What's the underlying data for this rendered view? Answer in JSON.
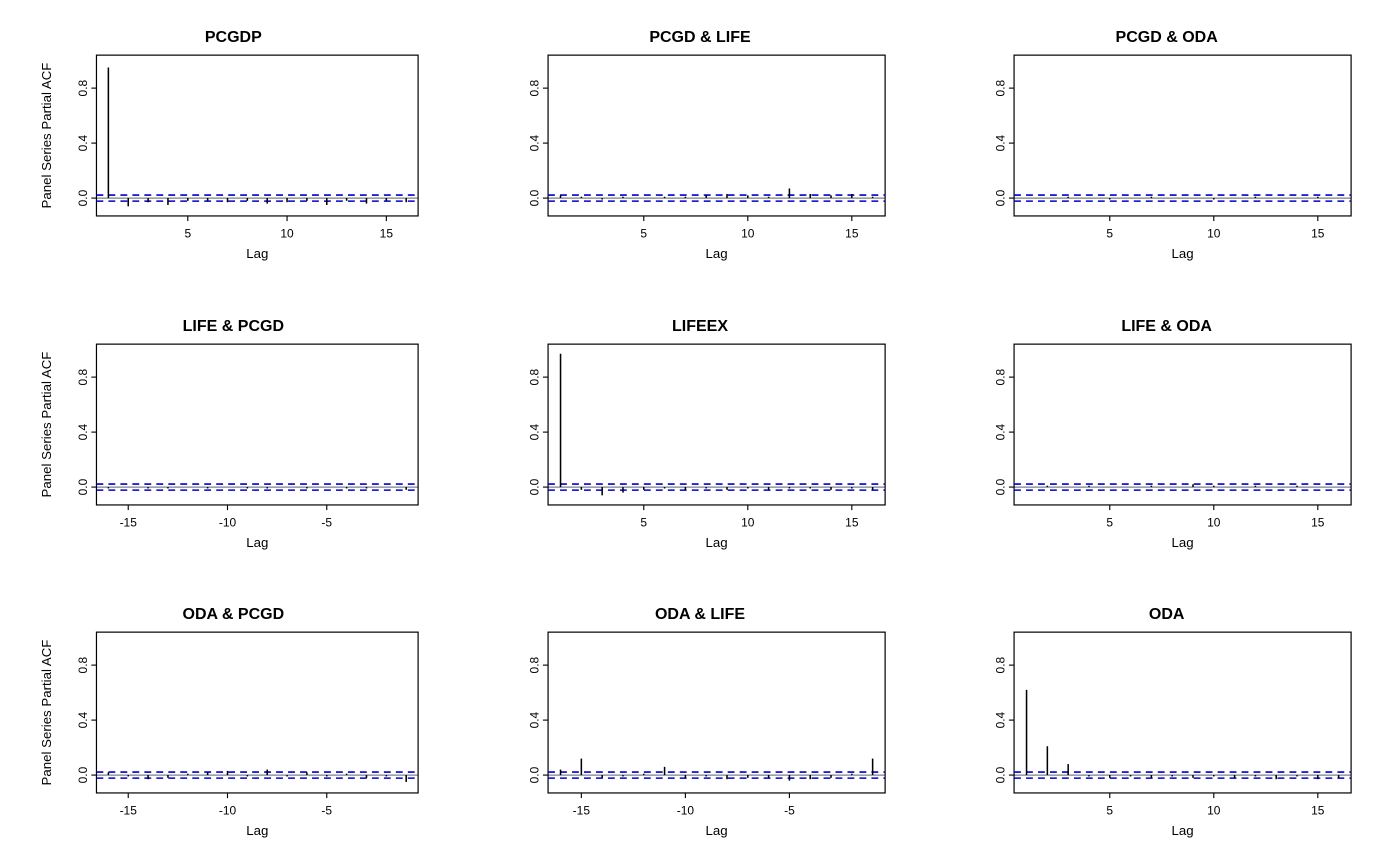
{
  "figure": {
    "ylab": "Panel Series Partial ACF",
    "xlab": "Lag",
    "colors": {
      "spike": "#000000",
      "conf": "#0000CD",
      "box": "#000000",
      "bg": "#ffffff",
      "zero": "#000000"
    }
  },
  "chart_data": [
    {
      "type": "bar",
      "title": "PCGDP",
      "xlabel": "Lag",
      "ylabel": "Panel Series Partial ACF",
      "show_ylab": true,
      "grid": false,
      "legend": "none",
      "xlim": [
        0.4,
        16.6
      ],
      "ylim": [
        -0.13,
        1.04
      ],
      "x_ticks": [
        5,
        10,
        15
      ],
      "y_ticks": [
        0.0,
        0.4,
        0.8
      ],
      "conf": 0.022,
      "lags": [
        1,
        2,
        3,
        4,
        5,
        6,
        7,
        8,
        9,
        10,
        11,
        12,
        13,
        14,
        15,
        16
      ],
      "values": [
        0.95,
        -0.06,
        -0.03,
        -0.05,
        -0.02,
        -0.02,
        -0.03,
        -0.02,
        -0.04,
        -0.03,
        -0.02,
        -0.05,
        -0.02,
        -0.04,
        -0.02,
        -0.03
      ]
    },
    {
      "type": "bar",
      "title": "PCGD & LIFE",
      "xlabel": "Lag",
      "ylabel": "Panel Series Partial ACF",
      "show_ylab": false,
      "grid": false,
      "legend": "none",
      "xlim": [
        0.4,
        16.6
      ],
      "ylim": [
        -0.13,
        1.04
      ],
      "x_ticks": [
        5,
        10,
        15
      ],
      "y_ticks": [
        0.0,
        0.4,
        0.8
      ],
      "conf": 0.022,
      "lags": [
        1,
        2,
        3,
        4,
        5,
        6,
        7,
        8,
        9,
        10,
        11,
        12,
        13,
        14,
        15,
        16
      ],
      "values": [
        0.02,
        0.01,
        -0.01,
        0.01,
        0.0,
        0.01,
        0.01,
        0.02,
        0.03,
        0.02,
        0.01,
        0.07,
        0.03,
        0.02,
        0.03,
        0.01
      ]
    },
    {
      "type": "bar",
      "title": "PCGD & ODA",
      "xlabel": "Lag",
      "ylabel": "Panel Series Partial ACF",
      "show_ylab": false,
      "grid": false,
      "legend": "none",
      "xlim": [
        0.4,
        16.6
      ],
      "ylim": [
        -0.13,
        1.04
      ],
      "x_ticks": [
        5,
        10,
        15
      ],
      "y_ticks": [
        0.0,
        0.4,
        0.8
      ],
      "conf": 0.022,
      "lags": [
        1,
        2,
        3,
        4,
        5,
        6,
        7,
        8,
        9,
        10,
        11,
        12,
        13,
        14,
        15,
        16
      ],
      "values": [
        0.0,
        0.0,
        0.01,
        0.0,
        -0.01,
        0.0,
        0.01,
        0.0,
        0.0,
        -0.01,
        0.0,
        0.01,
        0.0,
        0.0,
        0.01,
        0.0
      ]
    },
    {
      "type": "bar",
      "title": "LIFE & PCGD",
      "xlabel": "Lag",
      "ylabel": "Panel Series Partial ACF",
      "show_ylab": true,
      "grid": false,
      "legend": "none",
      "xlim": [
        -16.6,
        -0.4
      ],
      "ylim": [
        -0.13,
        1.04
      ],
      "x_ticks": [
        -15,
        -10,
        -5
      ],
      "y_ticks": [
        0.0,
        0.4,
        0.8
      ],
      "conf": 0.022,
      "lags": [
        -16,
        -15,
        -14,
        -13,
        -12,
        -11,
        -10,
        -9,
        -8,
        -7,
        -6,
        -5,
        -4,
        -3,
        -2,
        -1
      ],
      "values": [
        -0.01,
        0.0,
        -0.01,
        -0.01,
        0.0,
        -0.01,
        0.0,
        -0.01,
        -0.01,
        0.0,
        -0.01,
        0.0,
        -0.01,
        -0.01,
        0.0,
        -0.02
      ]
    },
    {
      "type": "bar",
      "title": "LIFEEX",
      "xlabel": "Lag",
      "ylabel": "Panel Series Partial ACF",
      "show_ylab": false,
      "grid": false,
      "legend": "none",
      "xlim": [
        0.4,
        16.6
      ],
      "ylim": [
        -0.13,
        1.04
      ],
      "x_ticks": [
        5,
        10,
        15
      ],
      "y_ticks": [
        0.0,
        0.4,
        0.8
      ],
      "conf": 0.022,
      "lags": [
        1,
        2,
        3,
        4,
        5,
        6,
        7,
        8,
        9,
        10,
        11,
        12,
        13,
        14,
        15,
        16
      ],
      "values": [
        0.97,
        -0.02,
        -0.06,
        -0.04,
        -0.02,
        -0.01,
        -0.02,
        -0.01,
        -0.02,
        -0.01,
        -0.02,
        -0.01,
        -0.01,
        -0.02,
        -0.01,
        -0.02
      ]
    },
    {
      "type": "bar",
      "title": "LIFE & ODA",
      "xlabel": "Lag",
      "ylabel": "Panel Series Partial ACF",
      "show_ylab": false,
      "grid": false,
      "legend": "none",
      "xlim": [
        0.4,
        16.6
      ],
      "ylim": [
        -0.13,
        1.04
      ],
      "x_ticks": [
        5,
        10,
        15
      ],
      "y_ticks": [
        0.0,
        0.4,
        0.8
      ],
      "conf": 0.022,
      "lags": [
        1,
        2,
        3,
        4,
        5,
        6,
        7,
        8,
        9,
        10,
        11,
        12,
        13,
        14,
        15,
        16
      ],
      "values": [
        0.0,
        0.01,
        0.0,
        0.01,
        0.0,
        0.0,
        0.01,
        0.0,
        0.02,
        0.01,
        0.0,
        0.01,
        0.0,
        0.01,
        0.0,
        0.0
      ]
    },
    {
      "type": "bar",
      "title": "ODA & PCGD",
      "xlabel": "Lag",
      "ylabel": "Panel Series Partial ACF",
      "show_ylab": true,
      "grid": false,
      "legend": "none",
      "xlim": [
        -16.6,
        -0.4
      ],
      "ylim": [
        -0.13,
        1.04
      ],
      "x_ticks": [
        -15,
        -10,
        -5
      ],
      "y_ticks": [
        0.0,
        0.4,
        0.8
      ],
      "conf": 0.022,
      "lags": [
        -16,
        -15,
        -14,
        -13,
        -12,
        -11,
        -10,
        -9,
        -8,
        -7,
        -6,
        -5,
        -4,
        -3,
        -2,
        -1
      ],
      "values": [
        0.02,
        -0.01,
        -0.03,
        -0.02,
        0.01,
        0.02,
        0.03,
        -0.01,
        0.04,
        -0.01,
        0.02,
        -0.01,
        0.01,
        -0.02,
        -0.01,
        -0.05
      ]
    },
    {
      "type": "bar",
      "title": "ODA & LIFE",
      "xlabel": "Lag",
      "ylabel": "Panel Series Partial ACF",
      "show_ylab": false,
      "grid": false,
      "legend": "none",
      "xlim": [
        -16.6,
        -0.4
      ],
      "ylim": [
        -0.13,
        1.04
      ],
      "x_ticks": [
        -15,
        -10,
        -5
      ],
      "y_ticks": [
        0.0,
        0.4,
        0.8
      ],
      "conf": 0.022,
      "lags": [
        -16,
        -15,
        -14,
        -13,
        -12,
        -11,
        -10,
        -9,
        -8,
        -7,
        -6,
        -5,
        -4,
        -3,
        -2,
        -1
      ],
      "values": [
        0.04,
        0.12,
        -0.02,
        -0.01,
        0.01,
        0.06,
        -0.02,
        -0.01,
        -0.03,
        -0.02,
        -0.02,
        -0.04,
        -0.03,
        -0.02,
        0.01,
        0.12
      ]
    },
    {
      "type": "bar",
      "title": "ODA",
      "xlabel": "Lag",
      "ylabel": "Panel Series Partial ACF",
      "show_ylab": false,
      "grid": false,
      "legend": "none",
      "xlim": [
        0.4,
        16.6
      ],
      "ylim": [
        -0.13,
        1.04
      ],
      "x_ticks": [
        5,
        10,
        15
      ],
      "y_ticks": [
        0.0,
        0.4,
        0.8
      ],
      "conf": 0.022,
      "lags": [
        1,
        2,
        3,
        4,
        5,
        6,
        7,
        8,
        9,
        10,
        11,
        12,
        13,
        14,
        15,
        16
      ],
      "values": [
        0.62,
        0.21,
        0.08,
        -0.01,
        -0.02,
        -0.01,
        -0.02,
        -0.01,
        -0.02,
        -0.01,
        -0.02,
        -0.01,
        -0.03,
        -0.01,
        -0.03,
        -0.02
      ]
    }
  ]
}
